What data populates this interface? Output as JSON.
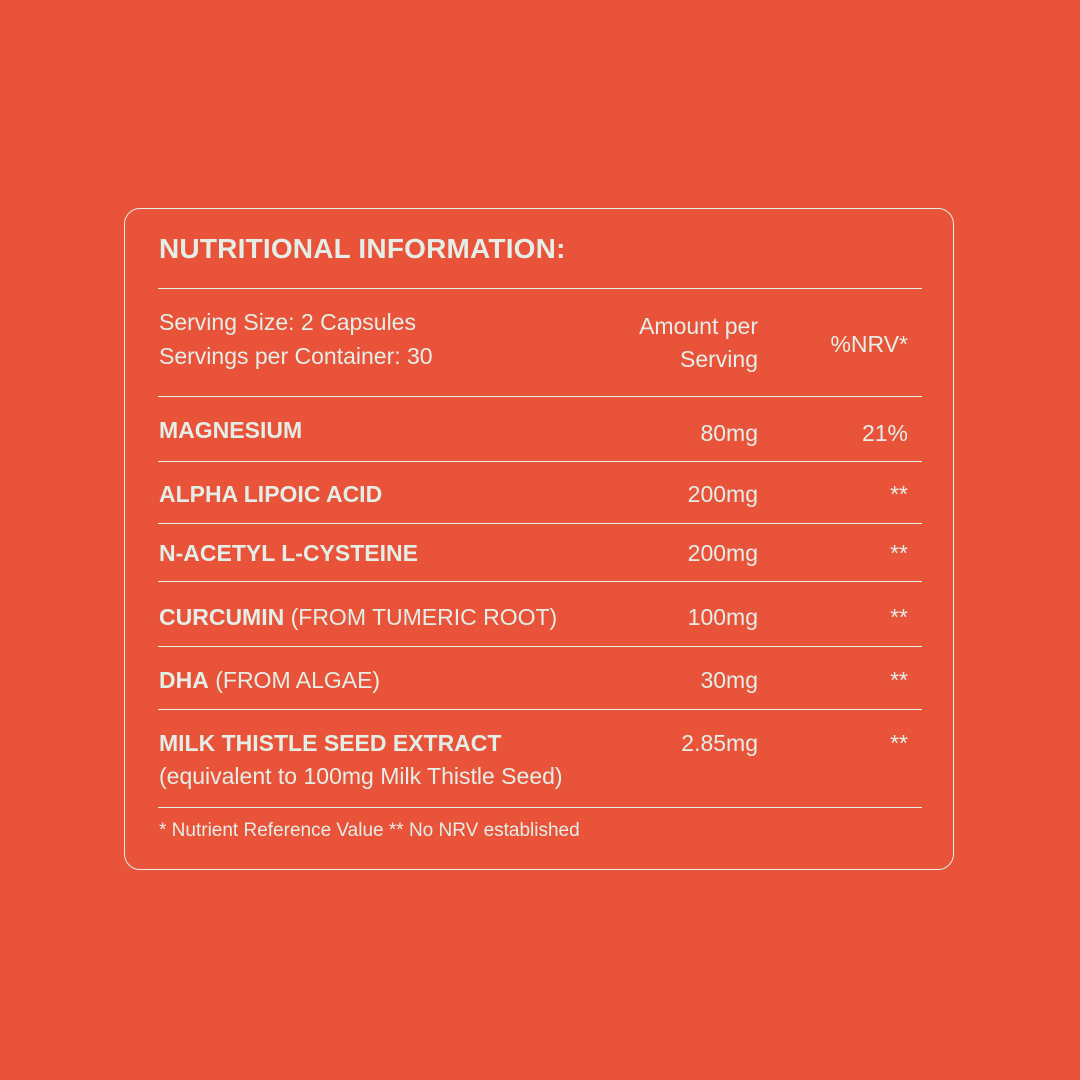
{
  "title": "NUTRITIONAL INFORMATION:",
  "serving_size": "Serving Size: 2 Capsules",
  "servings_per_container": "Servings per Container: 30",
  "columns": {
    "amount_line1": "Amount per",
    "amount_line2": "Serving",
    "nrv": "%NRV*"
  },
  "rows": [
    {
      "name": "MAGNESIUM",
      "note": "",
      "amount": "80mg",
      "nrv": "21%"
    },
    {
      "name": "ALPHA LIPOIC ACID",
      "note": "",
      "amount": "200mg",
      "nrv": "**"
    },
    {
      "name": "N-ACETYL L-CYSTEINE",
      "note": "",
      "amount": "200mg",
      "nrv": "**"
    },
    {
      "name": "CURCUMIN",
      "note": " (FROM TUMERIC ROOT)",
      "amount": "100mg",
      "nrv": "**"
    },
    {
      "name": "DHA",
      "note": " (FROM ALGAE)",
      "amount": "30mg",
      "nrv": "**"
    },
    {
      "name": "MILK THISTLE SEED EXTRACT",
      "note": "(equivalent to 100mg Milk Thistle Seed)",
      "amount": "2.85mg",
      "nrv": "**"
    }
  ],
  "footnote": "* Nutrient Reference Value  ** No NRV established",
  "colors": {
    "background": "#E8533A",
    "text": "#E4EEE7"
  }
}
